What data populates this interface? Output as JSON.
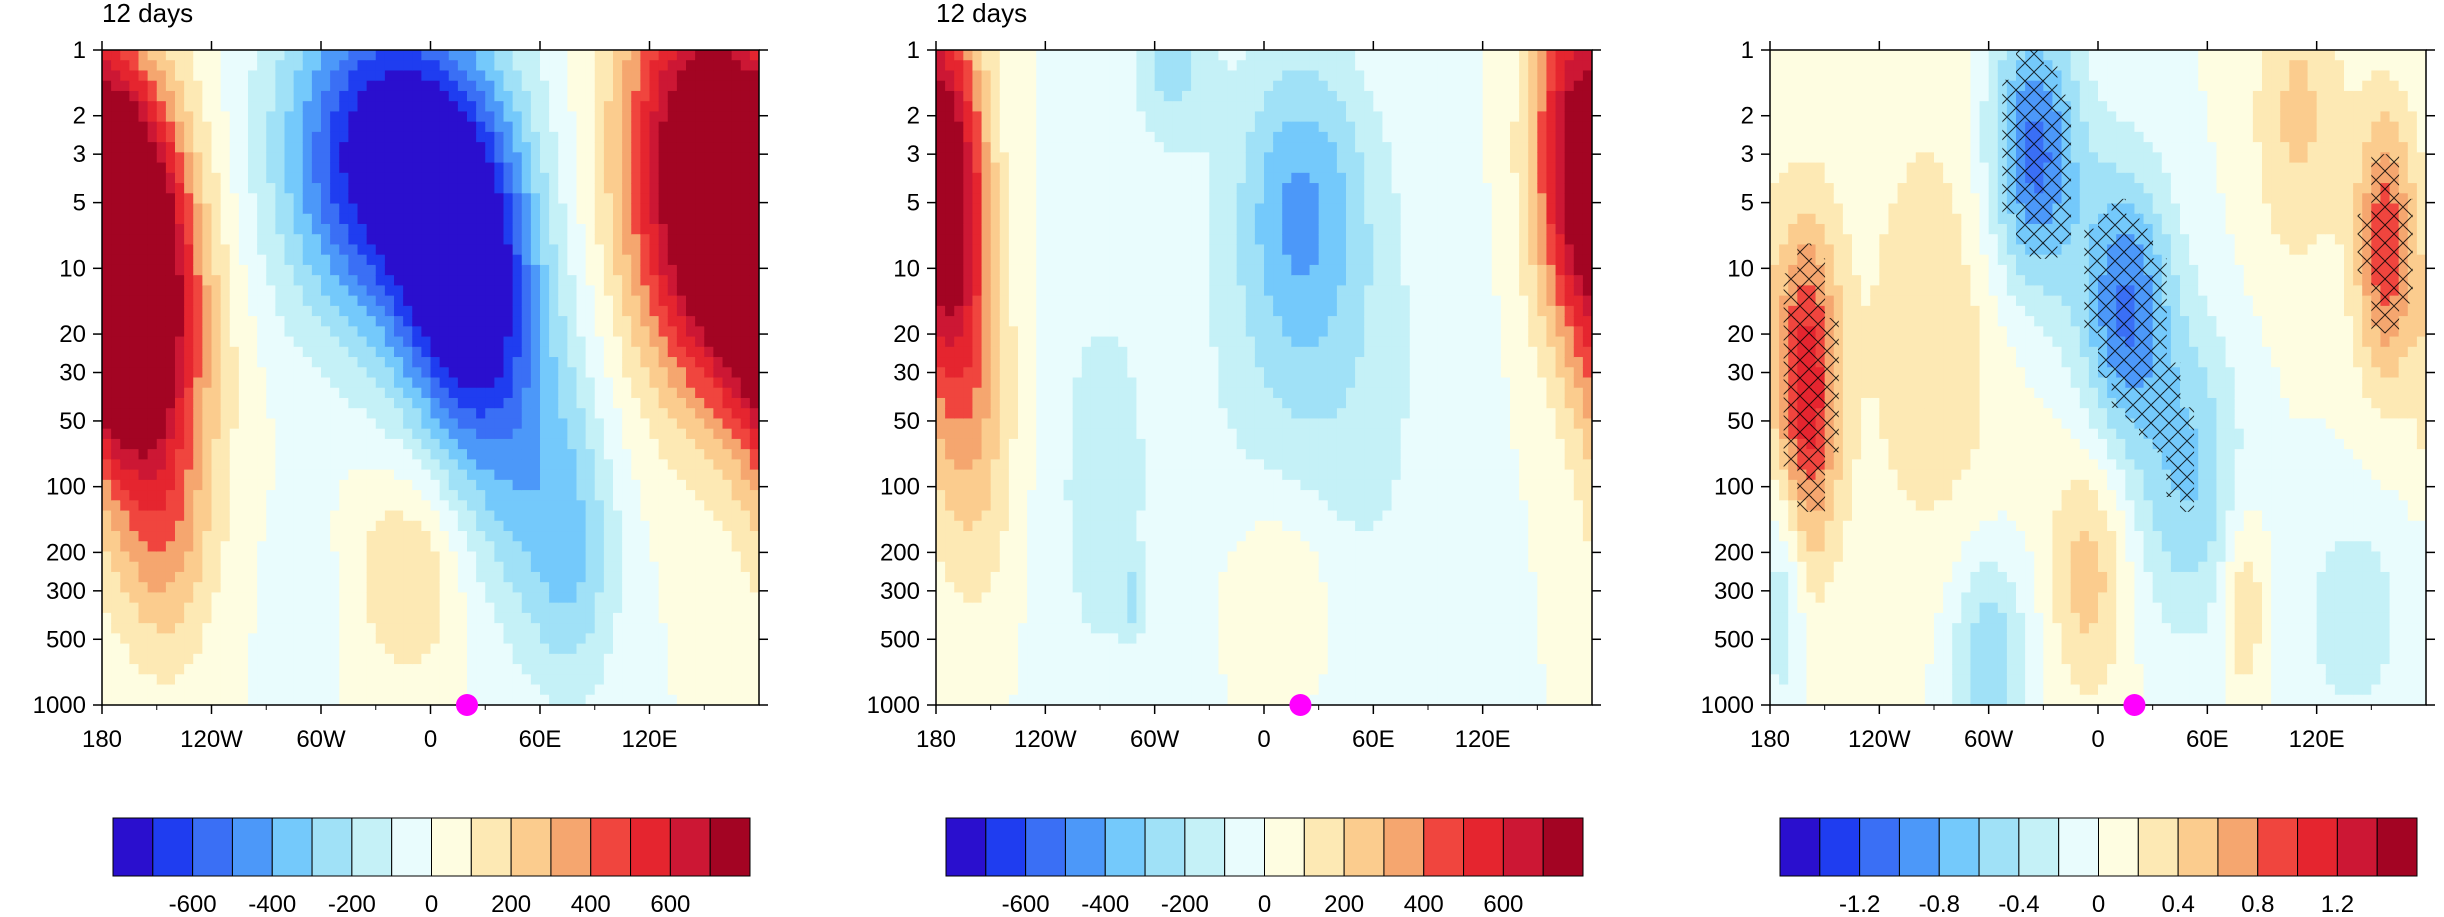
{
  "chart_data": [
    {
      "type": "heatmap",
      "title": "12 days",
      "xlabel": "",
      "ylabel": "",
      "x_ticks": [
        "180",
        "120W",
        "60W",
        "0",
        "60E",
        "120E"
      ],
      "x_tick_values": [
        -180,
        -120,
        -60,
        0,
        60,
        120
      ],
      "xlim": [
        -180,
        180
      ],
      "y_ticks": [
        "1",
        "2",
        "3",
        "5",
        "10",
        "20",
        "30",
        "50",
        "100",
        "200",
        "300",
        "500",
        "1000"
      ],
      "y_tick_values": [
        1,
        2,
        3,
        5,
        10,
        20,
        30,
        50,
        100,
        200,
        300,
        500,
        1000
      ],
      "ylim": [
        1000,
        1
      ],
      "y_scale": "log",
      "marker": {
        "lon": 20,
        "level": 1000,
        "color": "#ff00ff"
      },
      "colorbar_labels": [
        "-600",
        "-400",
        "-200",
        "0",
        "200",
        "400",
        "600"
      ],
      "colorbar_label_values": [
        -600,
        -400,
        -200,
        0,
        200,
        400,
        600
      ],
      "colorbar_range": [
        -800,
        800
      ],
      "features": [
        {
          "lon": -165,
          "level": 10,
          "value": 900,
          "sx": 18,
          "sy": 0.55
        },
        {
          "lon": -150,
          "level": 20,
          "value": 500,
          "sx": 25,
          "sy": 0.7
        },
        {
          "lon": -22,
          "level": 3,
          "value": -850,
          "sx": 40,
          "sy": 0.55
        },
        {
          "lon": 20,
          "level": 12,
          "value": -750,
          "sx": 25,
          "sy": 0.5
        },
        {
          "lon": 50,
          "level": 70,
          "value": -300,
          "sx": 28,
          "sy": 0.55
        },
        {
          "lon": 78,
          "level": 250,
          "value": -220,
          "sx": 18,
          "sy": 0.45
        },
        {
          "lon": 162,
          "level": 5,
          "value": 900,
          "sx": 22,
          "sy": 0.6
        },
        {
          "lon": 130,
          "level": 3,
          "value": 500,
          "sx": 25,
          "sy": 0.7
        },
        {
          "lon": -10,
          "level": 250,
          "value": 220,
          "sx": 22,
          "sy": 0.35
        },
        {
          "lon": -145,
          "level": 200,
          "value": 180,
          "sx": 18,
          "sy": 0.4
        },
        {
          "lon": -70,
          "level": 350,
          "value": -90,
          "sx": 14,
          "sy": 0.3
        }
      ]
    },
    {
      "type": "heatmap",
      "title": "12 days",
      "xlabel": "",
      "ylabel": "",
      "x_ticks": [
        "180",
        "120W",
        "60W",
        "0",
        "60E",
        "120E"
      ],
      "x_tick_values": [
        -180,
        -120,
        -60,
        0,
        60,
        120
      ],
      "xlim": [
        -180,
        180
      ],
      "y_ticks": [
        "1",
        "2",
        "3",
        "5",
        "10",
        "20",
        "30",
        "50",
        "100",
        "200",
        "300",
        "500",
        "1000"
      ],
      "y_tick_values": [
        1,
        2,
        3,
        5,
        10,
        20,
        30,
        50,
        100,
        200,
        300,
        500,
        1000
      ],
      "ylim": [
        1000,
        1
      ],
      "y_scale": "log",
      "marker": {
        "lon": 20,
        "level": 1000,
        "color": "#ff00ff"
      },
      "colorbar_labels": [
        "-600",
        "-400",
        "-200",
        "0",
        "200",
        "400",
        "600"
      ],
      "colorbar_label_values": [
        -600,
        -400,
        -200,
        0,
        200,
        400,
        600
      ],
      "colorbar_range": [
        -800,
        800
      ],
      "features": [
        {
          "lon": -170,
          "level": 5,
          "value": 600,
          "sx": 14,
          "sy": 0.6
        },
        {
          "lon": -160,
          "level": 50,
          "value": 250,
          "sx": 18,
          "sy": 0.6
        },
        {
          "lon": 168,
          "level": 3,
          "value": 650,
          "sx": 16,
          "sy": 0.6
        },
        {
          "lon": 20,
          "level": 5,
          "value": -330,
          "sx": 25,
          "sy": 0.5
        },
        {
          "lon": -50,
          "level": 1,
          "value": -250,
          "sx": 15,
          "sy": 0.3
        },
        {
          "lon": 30,
          "level": 40,
          "value": -170,
          "sx": 45,
          "sy": 0.9
        },
        {
          "lon": -90,
          "level": 100,
          "value": -130,
          "sx": 25,
          "sy": 0.9
        },
        {
          "lon": 10,
          "level": 300,
          "value": 190,
          "sx": 22,
          "sy": 0.35
        },
        {
          "lon": -72,
          "level": 320,
          "value": -180,
          "sx": 4,
          "sy": 0.1
        }
      ]
    },
    {
      "type": "heatmap",
      "title": "",
      "xlabel": "",
      "ylabel": "",
      "x_ticks": [
        "180",
        "120W",
        "60W",
        "0",
        "60E",
        "120E"
      ],
      "x_tick_values": [
        -180,
        -120,
        -60,
        0,
        60,
        120
      ],
      "xlim": [
        -180,
        180
      ],
      "y_ticks": [
        "1",
        "2",
        "3",
        "5",
        "10",
        "20",
        "30",
        "50",
        "100",
        "200",
        "300",
        "500",
        "1000"
      ],
      "y_tick_values": [
        1,
        2,
        3,
        5,
        10,
        20,
        30,
        50,
        100,
        200,
        300,
        500,
        1000
      ],
      "ylim": [
        1000,
        1
      ],
      "y_scale": "log",
      "marker": {
        "lon": 20,
        "level": 1000,
        "color": "#ff00ff"
      },
      "colorbar_labels": [
        "-1.2",
        "-0.8",
        "-0.4",
        "0",
        "0.4",
        "0.8",
        "1.2"
      ],
      "colorbar_label_values": [
        -1.2,
        -0.8,
        -0.4,
        0,
        0.4,
        0.8,
        1.2
      ],
      "colorbar_range": [
        -1.6,
        1.6
      ],
      "features": [
        {
          "lon": -160,
          "level": 35,
          "value": 1.15,
          "sx": 13,
          "sy": 0.55
        },
        {
          "lon": -35,
          "level": 3,
          "value": -1.1,
          "sx": 18,
          "sy": 0.45
        },
        {
          "lon": 15,
          "level": 15,
          "value": -1.0,
          "sx": 18,
          "sy": 0.45
        },
        {
          "lon": 50,
          "level": 90,
          "value": -0.6,
          "sx": 20,
          "sy": 0.5
        },
        {
          "lon": 158,
          "level": 8,
          "value": 0.95,
          "sx": 12,
          "sy": 0.45
        },
        {
          "lon": 110,
          "level": 2,
          "value": 0.45,
          "sx": 18,
          "sy": 0.5
        },
        {
          "lon": -90,
          "level": 20,
          "value": 0.35,
          "sx": 30,
          "sy": 0.8
        },
        {
          "lon": -60,
          "level": 600,
          "value": -0.6,
          "sx": 15,
          "sy": 0.35
        },
        {
          "lon": -5,
          "level": 250,
          "value": 0.5,
          "sx": 15,
          "sy": 0.4
        },
        {
          "lon": 80,
          "level": 350,
          "value": 0.45,
          "sx": 8,
          "sy": 0.3
        },
        {
          "lon": -172,
          "level": 300,
          "value": -0.4,
          "sx": 8,
          "sy": 0.4
        },
        {
          "lon": 140,
          "level": 400,
          "value": -0.35,
          "sx": 20,
          "sy": 0.35
        }
      ]
    }
  ],
  "colors": {
    "palette": [
      "#2a0fce",
      "#1f3df0",
      "#3a6ff5",
      "#4c98f9",
      "#74c9fb",
      "#a0e1f7",
      "#c5f1f7",
      "#e9fcfd",
      "#fefde1",
      "#fde9b4",
      "#fbcc8e",
      "#f5a66f",
      "#f0453e",
      "#e5252f",
      "#cc1734",
      "#a30423"
    ],
    "marker": "#ff00ff"
  }
}
